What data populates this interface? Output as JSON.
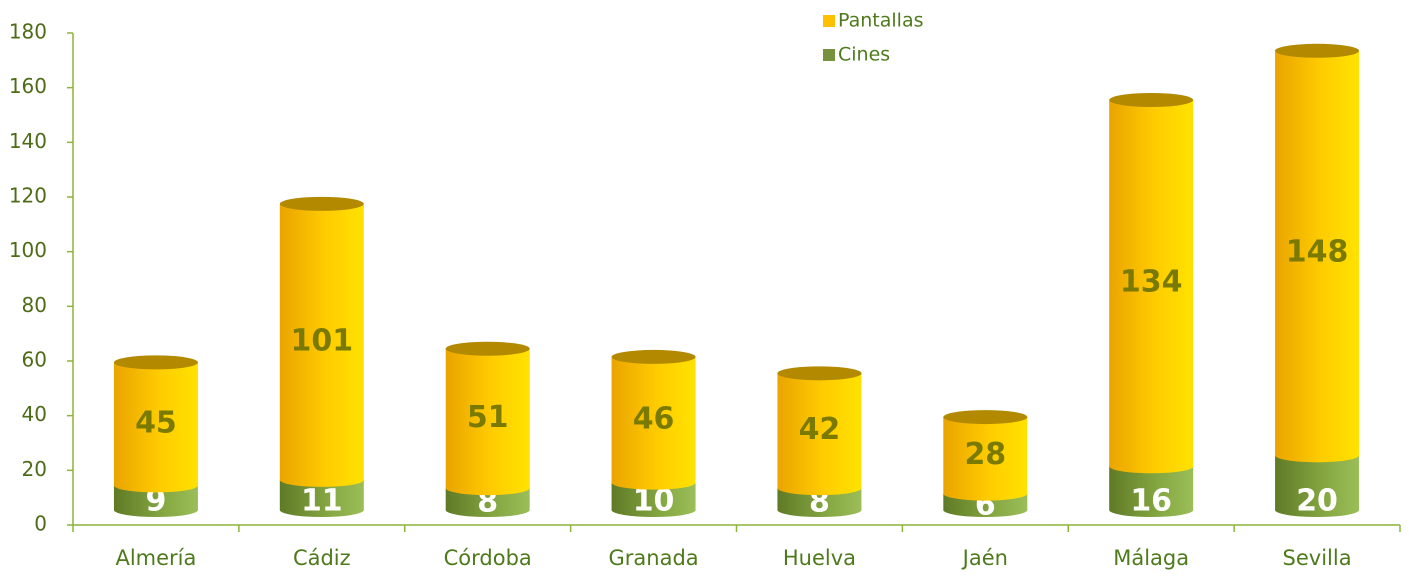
{
  "chart_data": {
    "type": "stacked_cylinder",
    "categories": [
      "Almería",
      "Cádiz",
      "Córdoba",
      "Granada",
      "Huelva",
      "Jaén",
      "Málaga",
      "Sevilla"
    ],
    "series": [
      {
        "name": "Cines",
        "color": "#76923c",
        "values": [
          9,
          11,
          8,
          10,
          8,
          6,
          16,
          20
        ]
      },
      {
        "name": "Pantallas",
        "color": "#ffc000",
        "values": [
          45,
          101,
          51,
          46,
          42,
          28,
          134,
          148
        ]
      }
    ],
    "ylim": [
      0,
      180
    ],
    "yticks": [
      0,
      20,
      40,
      60,
      80,
      100,
      120,
      140,
      160,
      180
    ],
    "legend": "top"
  }
}
